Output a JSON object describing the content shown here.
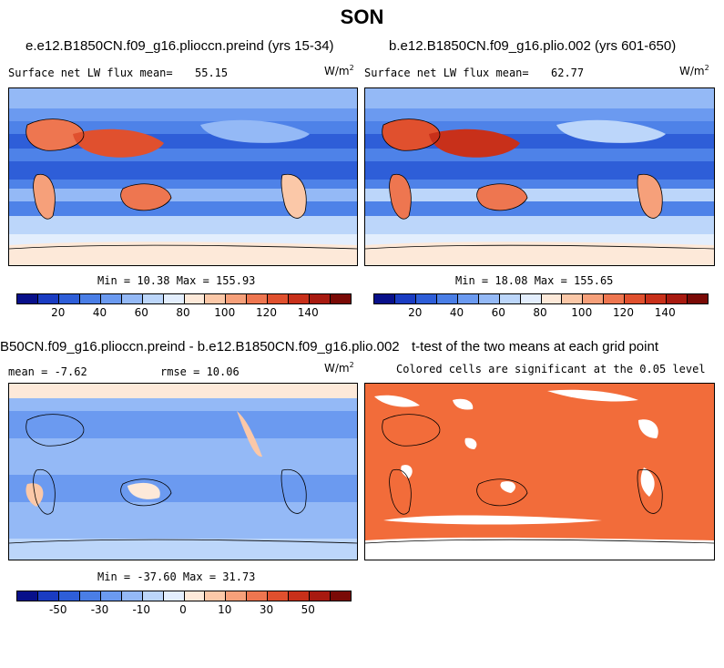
{
  "title": "SON",
  "panels": [
    {
      "title": "e.e12.B1850CN.f09_g16.pliocсn.preind (yrs 15-34)",
      "stat_label": "Surface net LW flux mean=",
      "stat_value": "55.15",
      "units": "W/m",
      "units_sup": "2",
      "minmax": "Min =  10.38 Max = 155.93",
      "colorbar_ticks": [
        "20",
        "40",
        "60",
        "80",
        "100",
        "120",
        "140"
      ]
    },
    {
      "title": "b.e12.B1850CN.f09_g16.plio.002 (yrs 601-650)",
      "stat_label": "Surface net LW flux mean=",
      "stat_value": "62.77",
      "units": "W/m",
      "units_sup": "2",
      "minmax": "Min =  18.08 Max = 155.65",
      "colorbar_ticks": [
        "20",
        "40",
        "60",
        "80",
        "100",
        "120",
        "140"
      ]
    },
    {
      "title": "B50CN.f09_g16.pliocсn.preind - b.e12.B1850CN.f09_g16.plio.002",
      "stat_label": "mean =  -7.62",
      "stat_value": "rmse =  10.06",
      "units": "W/m",
      "units_sup": "2",
      "minmax": "Min = -37.60 Max =  31.73",
      "colorbar_ticks": [
        "-50",
        "-30",
        "-10",
        "0",
        "10",
        "30",
        "50"
      ]
    },
    {
      "title": "t-test of the two means at each grid point",
      "subtitle": "Colored cells are significant at the 0.05 level"
    }
  ],
  "colors": {
    "seq": [
      "#08108a",
      "#1a3cc2",
      "#2e5ed8",
      "#4a7ee6",
      "#6b9af0",
      "#94b9f6",
      "#bcd6fa",
      "#e3eefd",
      "#fde9d9",
      "#fbc8a8",
      "#f6a07a",
      "#ee7650",
      "#e0502e",
      "#c8301a",
      "#a81a10",
      "#7a0a06"
    ],
    "significant": "#f26c3a",
    "ocean_mid": "#4e82e8"
  }
}
